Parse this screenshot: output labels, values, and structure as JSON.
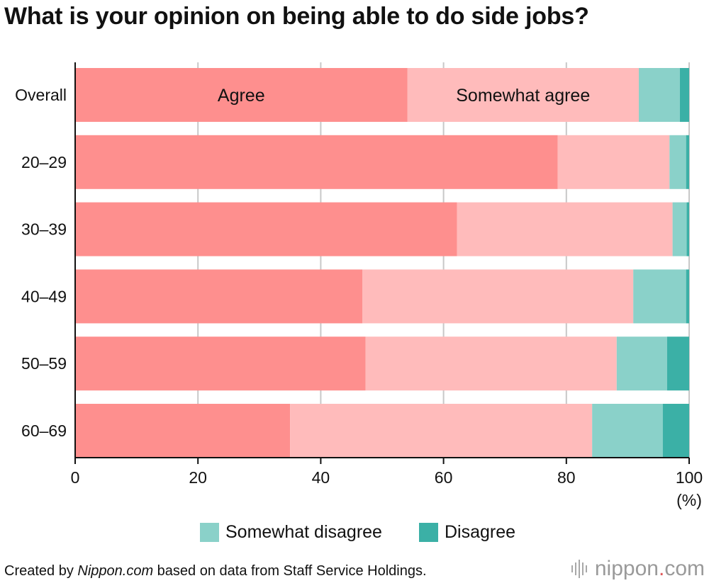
{
  "title": "What is your opinion on being able to do side jobs?",
  "chart_data": {
    "type": "bar",
    "orientation": "horizontal",
    "stacked": true,
    "title": "What is your opinion on being able to do side jobs?",
    "categories": [
      "Overall",
      "20–29",
      "30–39",
      "40–49",
      "50–59",
      "60–69"
    ],
    "series": [
      {
        "name": "Agree",
        "color": "#fe8f8e",
        "values": [
          54.1,
          78.6,
          62.2,
          46.8,
          47.3,
          35.0
        ]
      },
      {
        "name": "Somewhat agree",
        "color": "#ffbbbb",
        "values": [
          37.7,
          18.2,
          35.1,
          44.1,
          40.9,
          49.2
        ]
      },
      {
        "name": "Somewhat disagree",
        "color": "#8ad1c9",
        "values": [
          6.7,
          2.7,
          2.3,
          8.6,
          8.2,
          11.5
        ]
      },
      {
        "name": "Disagree",
        "color": "#3bb0a6",
        "values": [
          1.5,
          0.5,
          0.4,
          0.5,
          3.6,
          4.3
        ]
      }
    ],
    "inline_labels": [
      "Agree",
      "Somewhat agree"
    ],
    "xlim": [
      0,
      100
    ],
    "xticks": [
      "0",
      "20",
      "40",
      "60",
      "80",
      "100"
    ],
    "xunit": "(%)",
    "grid": true
  },
  "legend": {
    "items": [
      {
        "label": "Somewhat disagree",
        "color": "#8ad1c9"
      },
      {
        "label": "Disagree",
        "color": "#3bb0a6"
      }
    ]
  },
  "footer": {
    "prefix": "Created by ",
    "source_italic": "Nippon.com",
    "suffix": " based on data from Staff Service Holdings."
  },
  "logo": {
    "name": "nippon",
    "dot": ".",
    "tld": "com",
    "icon": "sound-bars-icon"
  }
}
